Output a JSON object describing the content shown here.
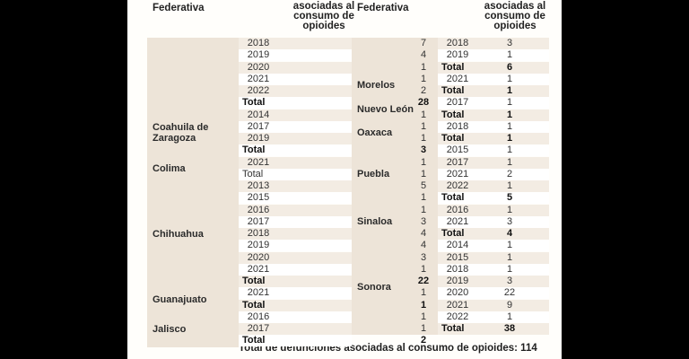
{
  "left_table": {
    "header_state": "Federativa",
    "header_deaths": [
      "asociadas al",
      "consumo de",
      "opioides"
    ],
    "groups": [
      {
        "state": "",
        "state_lines": [],
        "rows": [
          {
            "year": "2018",
            "count": "7"
          },
          {
            "year": "2019",
            "count": "4"
          },
          {
            "year": "2020",
            "count": "1"
          },
          {
            "year": "2021",
            "count": "1"
          },
          {
            "year": "2022",
            "count": "2"
          },
          {
            "year": "Total",
            "count": "28",
            "total": true
          }
        ]
      },
      {
        "state": "Coahuila de Zaragoza",
        "state_lines": [
          "Coahuila de",
          "Zaragoza"
        ],
        "rows": [
          {
            "year": "2014",
            "count": "1"
          },
          {
            "year": "2017",
            "count": "1"
          },
          {
            "year": "2019",
            "count": "1"
          },
          {
            "year": "Total",
            "count": "3",
            "total": true
          }
        ]
      },
      {
        "state": "Colima",
        "state_lines": [
          "Colima"
        ],
        "rows": [
          {
            "year": "2021",
            "count": "1"
          },
          {
            "year": "Total",
            "count": "1",
            "plain_total": true
          }
        ]
      },
      {
        "state": "Chihuahua",
        "state_lines": [
          "Chihuahua"
        ],
        "rows": [
          {
            "year": "2013",
            "count": "5"
          },
          {
            "year": "2015",
            "count": "1"
          },
          {
            "year": "2016",
            "count": "1"
          },
          {
            "year": "2017",
            "count": "3"
          },
          {
            "year": "2018",
            "count": "4"
          },
          {
            "year": "2019",
            "count": "4"
          },
          {
            "year": "2020",
            "count": "3"
          },
          {
            "year": "2021",
            "count": "1"
          },
          {
            "year": "Total",
            "count": "22",
            "total": true
          }
        ]
      },
      {
        "state": "Guanajuato",
        "state_lines": [
          "Guanajuato"
        ],
        "rows": [
          {
            "year": "2021",
            "count": "1"
          },
          {
            "year": "Total",
            "count": "1",
            "total": true
          }
        ]
      },
      {
        "state": "Jalisco",
        "state_lines": [
          "Jalisco"
        ],
        "rows": [
          {
            "year": "2016",
            "count": "1"
          },
          {
            "year": "2017",
            "count": "1"
          },
          {
            "year": "Total",
            "count": "2",
            "total": true
          }
        ]
      }
    ]
  },
  "right_table": {
    "header_state": "Federativa",
    "header_deaths": [
      "asociadas al",
      "consumo de",
      "opioides"
    ],
    "groups": [
      {
        "state": "",
        "state_lines": [],
        "rows": [
          {
            "year": "2018",
            "count": "3"
          },
          {
            "year": "2019",
            "count": "1"
          },
          {
            "year": "Total",
            "count": "6",
            "total": true
          }
        ]
      },
      {
        "state": "Morelos",
        "state_lines": [
          "Morelos"
        ],
        "rows": [
          {
            "year": "2021",
            "count": "1"
          },
          {
            "year": "Total",
            "count": "1",
            "total": true
          }
        ]
      },
      {
        "state": "Nuevo León",
        "state_lines": [
          "Nuevo León"
        ],
        "rows": [
          {
            "year": "2017",
            "count": "1"
          },
          {
            "year": "Total",
            "count": "1",
            "total": true
          }
        ]
      },
      {
        "state": "Oaxaca",
        "state_lines": [
          "Oaxaca"
        ],
        "rows": [
          {
            "year": "2018",
            "count": "1"
          },
          {
            "year": "Total",
            "count": "1",
            "total": true
          }
        ]
      },
      {
        "state": "Puebla",
        "state_lines": [
          "Puebla"
        ],
        "rows": [
          {
            "year": "2015",
            "count": "1"
          },
          {
            "year": "2017",
            "count": "1"
          },
          {
            "year": "2021",
            "count": "2"
          },
          {
            "year": "2022",
            "count": "1"
          },
          {
            "year": "Total",
            "count": "5",
            "total": true
          }
        ]
      },
      {
        "state": "Sinaloa",
        "state_lines": [
          "Sinaloa"
        ],
        "rows": [
          {
            "year": "2016",
            "count": "1"
          },
          {
            "year": "2021",
            "count": "3"
          },
          {
            "year": "Total",
            "count": "4",
            "total": true
          }
        ]
      },
      {
        "state": "Sonora",
        "state_lines": [
          "Sonora"
        ],
        "rows": [
          {
            "year": "2014",
            "count": "1"
          },
          {
            "year": "2015",
            "count": "1"
          },
          {
            "year": "2018",
            "count": "1"
          },
          {
            "year": "2019",
            "count": "3"
          },
          {
            "year": "2020",
            "count": "22"
          },
          {
            "year": "2021",
            "count": "9"
          },
          {
            "year": "2022",
            "count": "1"
          },
          {
            "year": "Total",
            "count": "38",
            "total": true
          }
        ]
      }
    ]
  },
  "grand_total": "Total de defunciones asociadas al consumo de opioides: 114"
}
